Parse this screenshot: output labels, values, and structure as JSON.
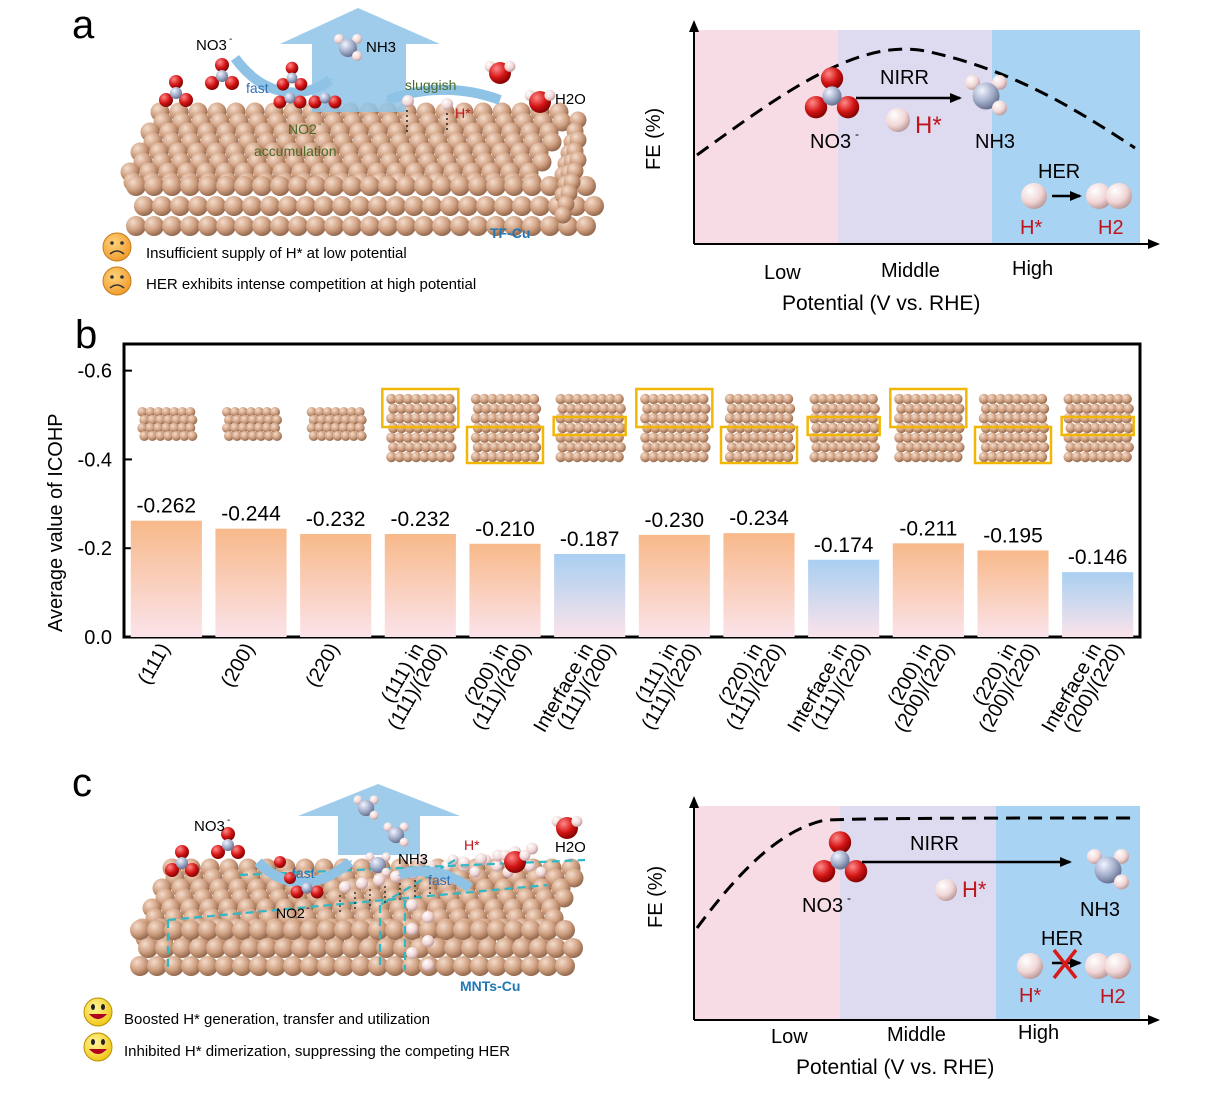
{
  "panel_a": {
    "letter": "a",
    "nitrate_label": "NO3",
    "fast_label": "fast",
    "ammonia_label": "NH3",
    "sluggish_label": "sluggish",
    "water_label": "H2O",
    "nitrite_label": "NO2",
    "accumulation_label": "accumulation",
    "hstar_label": "H*",
    "catalyst_label": "TF-Cu",
    "notes": [
      "Insufficient supply of H* at low potential",
      "HER exhibits intense competition at high potential"
    ],
    "fe_plot": {
      "ylabel": "FE (%)",
      "xlabel": "Potential  (V vs. RHE)",
      "regions": [
        "Low",
        "Middle",
        "High"
      ],
      "nirr_label": "NIRR",
      "reactant_label": "NO3",
      "hstar_label": "H*",
      "product_label": "NH3",
      "her_label": "HER",
      "her_reactant_label": "H*",
      "her_product_label": "H2"
    }
  },
  "panel_b": {
    "letter": "b",
    "chart_data": {
      "type": "bar",
      "ylabel": "Average value of ICOHP",
      "ylim": [
        0,
        -0.66
      ],
      "yticks": [
        "-0.6",
        "-0.4",
        "-0.2",
        "0.0"
      ],
      "categories": [
        [
          "(111)"
        ],
        [
          "(200)"
        ],
        [
          "(220)"
        ],
        [
          "(111) in",
          "(111)/(200)"
        ],
        [
          "(200) in",
          "(111)/(200)"
        ],
        [
          "Interface in",
          "(111)/(200)"
        ],
        [
          "(111) in",
          "(111)/(220)"
        ],
        [
          "(220) in",
          "(111)/(220)"
        ],
        [
          "Interface in",
          "(111)/(220)"
        ],
        [
          "(200) in",
          "(200)/(220)"
        ],
        [
          "(220) in",
          "(200)/(220)"
        ],
        [
          "Interface in",
          "(200)/(220)"
        ]
      ],
      "values": [
        -0.262,
        -0.244,
        -0.232,
        -0.232,
        -0.21,
        -0.187,
        -0.23,
        -0.234,
        -0.174,
        -0.211,
        -0.195,
        -0.146
      ],
      "value_labels": [
        "-0.262",
        "-0.244",
        "-0.232",
        "-0.232",
        "-0.210",
        "-0.187",
        "-0.230",
        "-0.234",
        "-0.174",
        "-0.211",
        "-0.195",
        "-0.146"
      ],
      "bar_styles": [
        "orange",
        "orange",
        "orange",
        "orange",
        "orange",
        "blue",
        "orange",
        "orange",
        "blue",
        "orange",
        "orange",
        "blue"
      ],
      "colors": {
        "orange": "#f8b98a",
        "blue": "#a9cff1",
        "pink": "#fbe1ea"
      }
    }
  },
  "panel_c": {
    "letter": "c",
    "nitrate_label": "NO3",
    "fast_label_1": "fast",
    "ammonia_label": "NH3",
    "hstar_label": "H*",
    "water_label": "H2O",
    "fast_label_2": "fast",
    "nitrite_label": "NO2",
    "catalyst_label": "MNTs-Cu",
    "notes": [
      "Boosted H* generation,  transfer and utilization",
      "Inhibited H* dimerization, suppressing the competing HER"
    ],
    "fe_plot": {
      "ylabel": "FE (%)",
      "xlabel": "Potential (V vs. RHE)",
      "regions": [
        "Low",
        "Middle",
        "High"
      ],
      "nirr_label": "NIRR",
      "reactant_label": "NO3",
      "hstar_label": "H*",
      "product_label": "NH3",
      "her_label": "HER",
      "her_reactant_label": "H*",
      "her_product_label": "H2"
    }
  },
  "colors": {
    "low_region": "#f7dce5",
    "middle_region": "#dedaf0",
    "high_region": "#a9d3f3",
    "copper": "#c99a7c",
    "oxygen": "#d61a1a",
    "nitrogen": "#9aa7c8",
    "hydrogen": "#f2dcdc",
    "arrow_blue": "#8ec3e6",
    "accent_red": "#c0141c",
    "catalyst_blue": "#1f78b4"
  }
}
